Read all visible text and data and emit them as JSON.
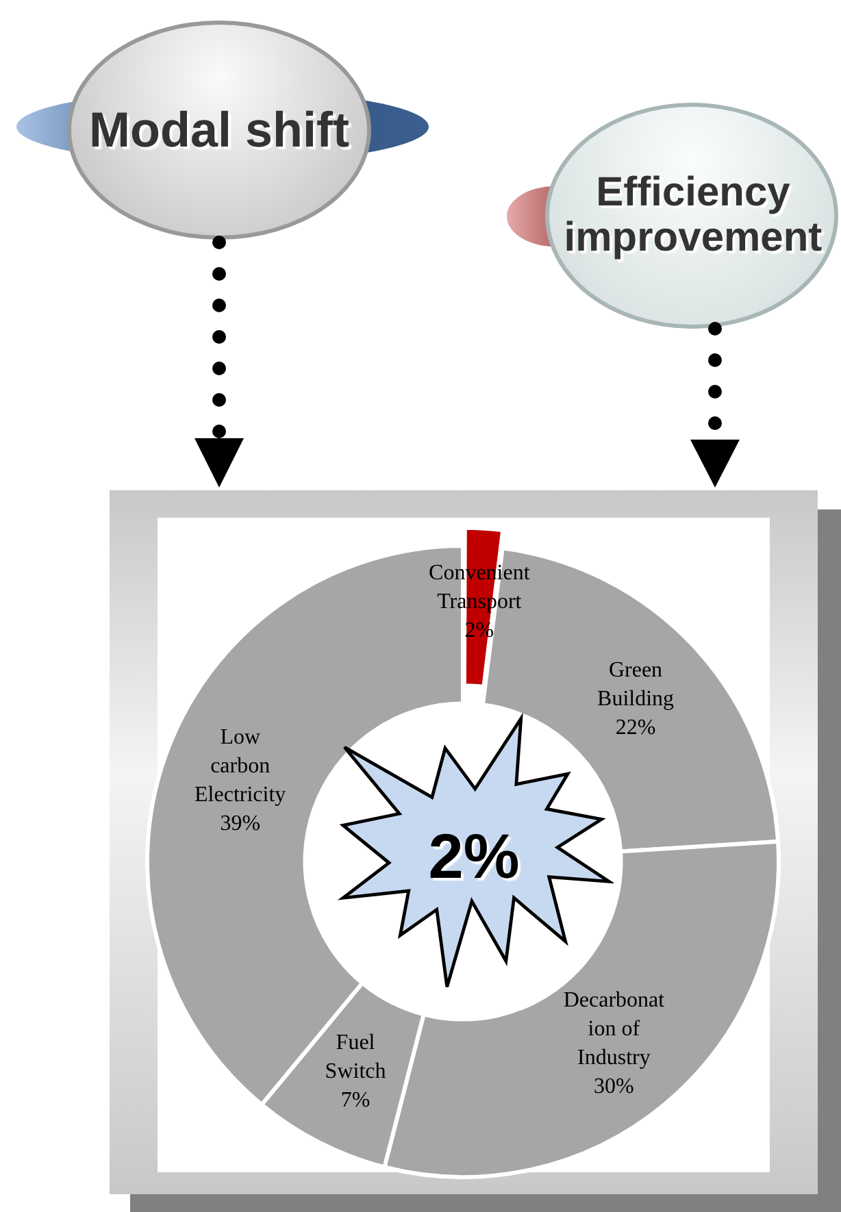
{
  "chart_data": {
    "type": "donut",
    "categories": [
      "Convenient Transport",
      "Green Building",
      "Decarbonation of Industry",
      "Fuel Switch",
      "Low carbon Electricity"
    ],
    "values": [
      2,
      22,
      30,
      7,
      39
    ],
    "value_labels": [
      "2%",
      "22%",
      "30%",
      "7%",
      "39%"
    ],
    "colors": [
      "#c00000",
      "#a6a6a6",
      "#a6a6a6",
      "#a6a6a6",
      "#a6a6a6"
    ],
    "annotations": [
      "Modal shift",
      "Efficiency improvement",
      "2%"
    ],
    "legend": false
  }
}
